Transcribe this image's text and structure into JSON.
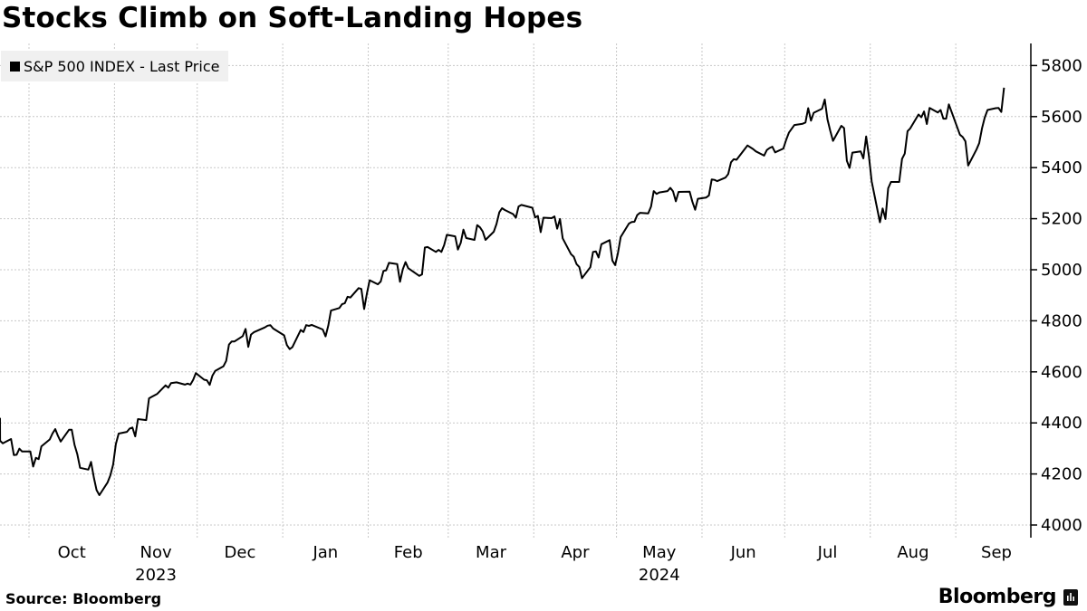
{
  "title": "Stocks Climb on Soft-Landing Hopes",
  "source": "Source: Bloomberg",
  "brand": "Bloomberg",
  "chart_data": {
    "type": "line",
    "title": "Stocks Climb on Soft-Landing Hopes",
    "legend": {
      "position": "top-left",
      "entries": [
        "S&P 500 INDEX - Last Price"
      ]
    },
    "xlabel": "",
    "ylabel": "",
    "ylim": [
      3960,
      5880
    ],
    "yticks": [
      4000,
      4200,
      4400,
      4600,
      4800,
      5000,
      5200,
      5400,
      5600,
      5800
    ],
    "y_axis_side": "right",
    "grid": true,
    "xticks": [
      {
        "label": "Oct",
        "month": "2023-10"
      },
      {
        "label": "Nov",
        "month": "2023-11"
      },
      {
        "label": "Dec",
        "month": "2023-12"
      },
      {
        "label": "Jan",
        "month": "2024-01"
      },
      {
        "label": "Feb",
        "month": "2024-02"
      },
      {
        "label": "Mar",
        "month": "2024-03"
      },
      {
        "label": "Apr",
        "month": "2024-04"
      },
      {
        "label": "May",
        "month": "2024-05"
      },
      {
        "label": "Jun",
        "month": "2024-06"
      },
      {
        "label": "Jul",
        "month": "2024-07"
      },
      {
        "label": "Aug",
        "month": "2024-08"
      },
      {
        "label": "Sep",
        "month": "2024-09"
      }
    ],
    "year_labels": [
      {
        "label": "2023",
        "month": "2023-11"
      },
      {
        "label": "2024",
        "month": "2024-05"
      }
    ],
    "series": [
      {
        "name": "S&P 500 INDEX - Last Price",
        "color": "#000000",
        "x": [
          "2023-09-20",
          "2023-09-21",
          "2023-09-22",
          "2023-09-25",
          "2023-09-26",
          "2023-09-27",
          "2023-09-28",
          "2023-09-29",
          "2023-10-02",
          "2023-10-03",
          "2023-10-04",
          "2023-10-05",
          "2023-10-06",
          "2023-10-09",
          "2023-10-10",
          "2023-10-11",
          "2023-10-12",
          "2023-10-13",
          "2023-10-16",
          "2023-10-17",
          "2023-10-18",
          "2023-10-19",
          "2023-10-20",
          "2023-10-23",
          "2023-10-24",
          "2023-10-25",
          "2023-10-26",
          "2023-10-27",
          "2023-10-30",
          "2023-10-31",
          "2023-11-01",
          "2023-11-02",
          "2023-11-03",
          "2023-11-06",
          "2023-11-07",
          "2023-11-08",
          "2023-11-09",
          "2023-11-10",
          "2023-11-13",
          "2023-11-14",
          "2023-11-15",
          "2023-11-16",
          "2023-11-17",
          "2023-11-20",
          "2023-11-21",
          "2023-11-22",
          "2023-11-24",
          "2023-11-27",
          "2023-11-28",
          "2023-11-29",
          "2023-11-30",
          "2023-12-01",
          "2023-12-04",
          "2023-12-05",
          "2023-12-06",
          "2023-12-07",
          "2023-12-08",
          "2023-12-11",
          "2023-12-12",
          "2023-12-13",
          "2023-12-14",
          "2023-12-15",
          "2023-12-18",
          "2023-12-19",
          "2023-12-20",
          "2023-12-21",
          "2023-12-22",
          "2023-12-26",
          "2023-12-27",
          "2023-12-28",
          "2023-12-29",
          "2024-01-02",
          "2024-01-03",
          "2024-01-04",
          "2024-01-05",
          "2024-01-08",
          "2024-01-09",
          "2024-01-10",
          "2024-01-11",
          "2024-01-12",
          "2024-01-16",
          "2024-01-17",
          "2024-01-18",
          "2024-01-19",
          "2024-01-22",
          "2024-01-23",
          "2024-01-24",
          "2024-01-25",
          "2024-01-26",
          "2024-01-29",
          "2024-01-30",
          "2024-01-31",
          "2024-02-01",
          "2024-02-02",
          "2024-02-05",
          "2024-02-06",
          "2024-02-07",
          "2024-02-08",
          "2024-02-09",
          "2024-02-12",
          "2024-02-13",
          "2024-02-14",
          "2024-02-15",
          "2024-02-16",
          "2024-02-20",
          "2024-02-21",
          "2024-02-22",
          "2024-02-23",
          "2024-02-26",
          "2024-02-27",
          "2024-02-28",
          "2024-02-29",
          "2024-03-01",
          "2024-03-04",
          "2024-03-05",
          "2024-03-06",
          "2024-03-07",
          "2024-03-08",
          "2024-03-11",
          "2024-03-12",
          "2024-03-13",
          "2024-03-14",
          "2024-03-15",
          "2024-03-18",
          "2024-03-19",
          "2024-03-20",
          "2024-03-21",
          "2024-03-22",
          "2024-03-25",
          "2024-03-26",
          "2024-03-27",
          "2024-03-28",
          "2024-04-01",
          "2024-04-02",
          "2024-04-03",
          "2024-04-04",
          "2024-04-05",
          "2024-04-08",
          "2024-04-09",
          "2024-04-10",
          "2024-04-11",
          "2024-04-12",
          "2024-04-15",
          "2024-04-16",
          "2024-04-17",
          "2024-04-18",
          "2024-04-19",
          "2024-04-22",
          "2024-04-23",
          "2024-04-24",
          "2024-04-25",
          "2024-04-26",
          "2024-04-29",
          "2024-04-30",
          "2024-05-01",
          "2024-05-02",
          "2024-05-03",
          "2024-05-06",
          "2024-05-07",
          "2024-05-08",
          "2024-05-09",
          "2024-05-10",
          "2024-05-13",
          "2024-05-14",
          "2024-05-15",
          "2024-05-16",
          "2024-05-17",
          "2024-05-20",
          "2024-05-21",
          "2024-05-22",
          "2024-05-23",
          "2024-05-24",
          "2024-05-28",
          "2024-05-29",
          "2024-05-30",
          "2024-05-31",
          "2024-06-03",
          "2024-06-04",
          "2024-06-05",
          "2024-06-06",
          "2024-06-07",
          "2024-06-10",
          "2024-06-11",
          "2024-06-12",
          "2024-06-13",
          "2024-06-14",
          "2024-06-17",
          "2024-06-18",
          "2024-06-20",
          "2024-06-21",
          "2024-06-24",
          "2024-06-25",
          "2024-06-26",
          "2024-06-27",
          "2024-06-28",
          "2024-07-01",
          "2024-07-02",
          "2024-07-03",
          "2024-07-05",
          "2024-07-08",
          "2024-07-09",
          "2024-07-10",
          "2024-07-11",
          "2024-07-12",
          "2024-07-15",
          "2024-07-16",
          "2024-07-17",
          "2024-07-18",
          "2024-07-19",
          "2024-07-22",
          "2024-07-23",
          "2024-07-24",
          "2024-07-25",
          "2024-07-26",
          "2024-07-29",
          "2024-07-30",
          "2024-07-31",
          "2024-08-01",
          "2024-08-02",
          "2024-08-05",
          "2024-08-06",
          "2024-08-07",
          "2024-08-08",
          "2024-08-09",
          "2024-08-12",
          "2024-08-13",
          "2024-08-14",
          "2024-08-15",
          "2024-08-16",
          "2024-08-19",
          "2024-08-20",
          "2024-08-21",
          "2024-08-22",
          "2024-08-23",
          "2024-08-26",
          "2024-08-27",
          "2024-08-28",
          "2024-08-29",
          "2024-08-30",
          "2024-09-03",
          "2024-09-04",
          "2024-09-05",
          "2024-09-06",
          "2024-09-09",
          "2024-09-10",
          "2024-09-11",
          "2024-09-12",
          "2024-09-13",
          "2024-09-16",
          "2024-09-17",
          "2024-09-18",
          "2024-09-19"
        ],
        "values": [
          4420,
          4330,
          4320,
          4337,
          4274,
          4275,
          4299,
          4288,
          4288,
          4229,
          4263,
          4258,
          4308,
          4335,
          4358,
          4376,
          4349,
          4327,
          4373,
          4373,
          4314,
          4278,
          4224,
          4217,
          4247,
          4186,
          4137,
          4117,
          4167,
          4194,
          4237,
          4317,
          4358,
          4365,
          4378,
          4382,
          4347,
          4415,
          4411,
          4496,
          4502,
          4508,
          4514,
          4547,
          4538,
          4556,
          4559,
          4550,
          4554,
          4550,
          4568,
          4595,
          4569,
          4567,
          4549,
          4585,
          4604,
          4622,
          4643,
          4707,
          4719,
          4719,
          4740,
          4768,
          4698,
          4746,
          4755,
          4774,
          4781,
          4783,
          4770,
          4743,
          4705,
          4689,
          4697,
          4764,
          4756,
          4783,
          4780,
          4784,
          4766,
          4739,
          4781,
          4840,
          4850,
          4865,
          4869,
          4894,
          4891,
          4928,
          4925,
          4846,
          4906,
          4959,
          4943,
          4954,
          4995,
          4998,
          5027,
          5022,
          4953,
          5001,
          5030,
          5006,
          4976,
          4982,
          5087,
          5089,
          5070,
          5078,
          5070,
          5096,
          5137,
          5131,
          5079,
          5105,
          5157,
          5124,
          5117,
          5175,
          5166,
          5150,
          5117,
          5149,
          5179,
          5225,
          5241,
          5234,
          5218,
          5204,
          5248,
          5254,
          5243,
          5205,
          5211,
          5147,
          5204,
          5202,
          5209,
          5161,
          5199,
          5123,
          5061,
          5051,
          5022,
          5011,
          4967,
          5010,
          5070,
          5072,
          5048,
          5100,
          5116,
          5036,
          5018,
          5064,
          5128,
          5181,
          5187,
          5188,
          5214,
          5223,
          5221,
          5247,
          5308,
          5297,
          5303,
          5308,
          5321,
          5307,
          5268,
          5305,
          5306,
          5267,
          5235,
          5278,
          5283,
          5291,
          5354,
          5352,
          5347,
          5361,
          5375,
          5421,
          5433,
          5431,
          5473,
          5487,
          5473,
          5464,
          5447,
          5469,
          5477,
          5482,
          5460,
          5475,
          5509,
          5537,
          5567,
          5572,
          5577,
          5633,
          5584,
          5615,
          5631,
          5667,
          5589,
          5544,
          5505,
          5564,
          5555,
          5427,
          5399,
          5459,
          5464,
          5436,
          5522,
          5446,
          5346,
          5186,
          5240,
          5199,
          5319,
          5344,
          5344,
          5434,
          5455,
          5543,
          5554,
          5608,
          5597,
          5620,
          5571,
          5634,
          5616,
          5626,
          5592,
          5592,
          5648,
          5529,
          5520,
          5503,
          5408,
          5471,
          5496,
          5554,
          5596,
          5626,
          5633,
          5634,
          5618,
          5713
        ]
      }
    ]
  }
}
